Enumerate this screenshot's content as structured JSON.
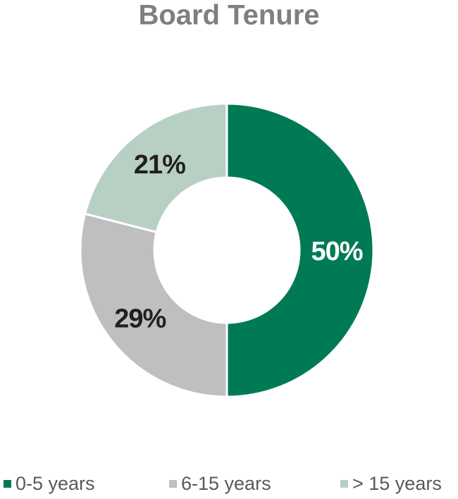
{
  "chart_data": {
    "type": "donut",
    "title": "Board Tenure",
    "categories": [
      "0-5 years",
      "6-15 years",
      "> 15 years"
    ],
    "values": [
      50,
      29,
      21
    ],
    "value_labels": [
      "50%",
      "29%",
      "21%"
    ],
    "colors": [
      "#007a55",
      "#bfbfc1",
      "#b8d0c4"
    ],
    "legend": "bottom"
  }
}
